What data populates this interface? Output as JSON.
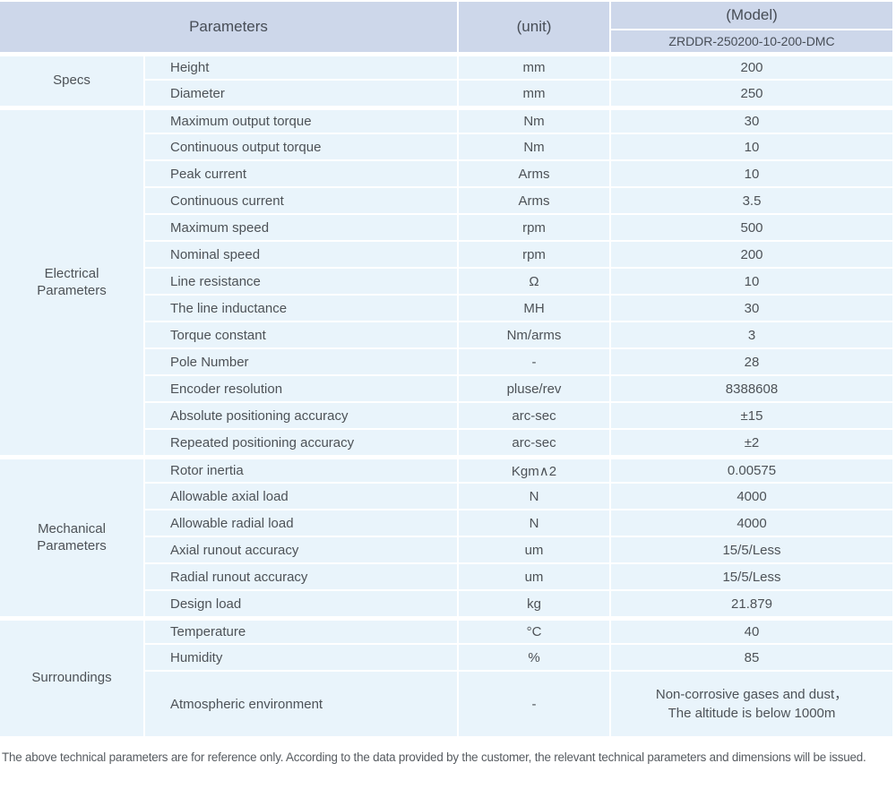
{
  "colors": {
    "header_bg": "#cdd7ea",
    "row_bg": "#e9f4fb",
    "text": "#4d5257",
    "separator": "#ffffff"
  },
  "table": {
    "header": {
      "parameters_label": "Parameters",
      "unit_label": "(unit)",
      "model_label": "(Model)",
      "model_value": "ZRDDR-250200-10-200-DMC"
    },
    "groups": [
      {
        "category": "Specs",
        "rows": [
          {
            "param": "Height",
            "unit": "mm",
            "value": "200"
          },
          {
            "param": "Diameter",
            "unit": "mm",
            "value": "250"
          }
        ]
      },
      {
        "category": "Electrical\nParameters",
        "rows": [
          {
            "param": "Maximum output torque",
            "unit": "Nm",
            "value": "30"
          },
          {
            "param": "Continuous output torque",
            "unit": "Nm",
            "value": "10"
          },
          {
            "param": "Peak current",
            "unit": "Arms",
            "value": "10"
          },
          {
            "param": "Continuous current",
            "unit": "Arms",
            "value": "3.5"
          },
          {
            "param": "Maximum speed",
            "unit": "rpm",
            "value": "500"
          },
          {
            "param": "Nominal speed",
            "unit": "rpm",
            "value": "200"
          },
          {
            "param": "Line resistance",
            "unit": "Ω",
            "value": "10"
          },
          {
            "param": "The line inductance",
            "unit": "MH",
            "value": "30"
          },
          {
            "param": "Torque constant",
            "unit": "Nm/arms",
            "value": "3"
          },
          {
            "param": "Pole Number",
            "unit": "-",
            "value": "28"
          },
          {
            "param": "Encoder resolution",
            "unit": "pluse/rev",
            "value": "8388608"
          },
          {
            "param": "Absolute positioning accuracy",
            "unit": "arc-sec",
            "value": "±15"
          },
          {
            "param": "Repeated positioning accuracy",
            "unit": "arc-sec",
            "value": "±2"
          }
        ]
      },
      {
        "category": "Mechanical\nParameters",
        "rows": [
          {
            "param": "Rotor inertia",
            "unit": "Kgm∧2",
            "value": "0.00575"
          },
          {
            "param": "Allowable axial load",
            "unit": "N",
            "value": "4000"
          },
          {
            "param": "Allowable radial load",
            "unit": "N",
            "value": "4000"
          },
          {
            "param": "Axial runout accuracy",
            "unit": "um",
            "value": "15/5/Less"
          },
          {
            "param": "Radial runout accuracy",
            "unit": "um",
            "value": "15/5/Less"
          },
          {
            "param": "Design load",
            "unit": "kg",
            "value": "21.879"
          }
        ]
      },
      {
        "category": "Surroundings",
        "rows": [
          {
            "param": "Temperature",
            "unit": "°C",
            "value": "40"
          },
          {
            "param": "Humidity",
            "unit": "%",
            "value": "85"
          },
          {
            "param": "Atmospheric environment",
            "unit": "-",
            "value": "Non-corrosive gases and dust，\nThe altitude is below 1000m",
            "tall": true
          }
        ]
      }
    ]
  },
  "page": {
    "footnote": "The above technical parameters are for reference only. According to the data provided by the customer, the relevant technical parameters and dimensions will be issued."
  }
}
